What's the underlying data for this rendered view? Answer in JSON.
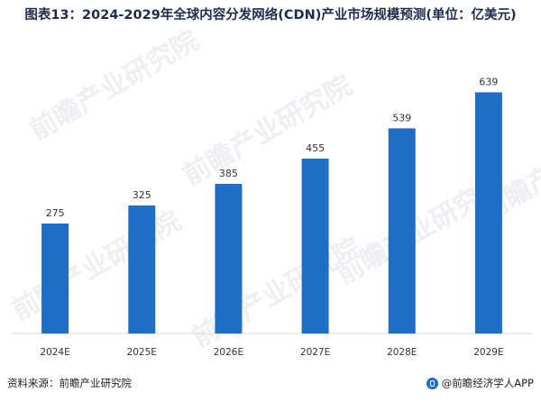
{
  "watermark": "前瞻产业研究院",
  "chart_data": {
    "type": "bar",
    "title": "图表13：2024-2029年全球内容分发网络(CDN)产业市场规模预测(单位：亿美元)",
    "categories": [
      "2024E",
      "2025E",
      "2026E",
      "2027E",
      "2028E",
      "2029E"
    ],
    "values": [
      275,
      325,
      385,
      455,
      539,
      639
    ],
    "xlabel": "",
    "ylabel": "",
    "ylim": [
      0,
      650
    ],
    "grid": false,
    "bar_color": "#1e6ec8"
  },
  "footer": {
    "source": "资料来源：前瞻产业研究院",
    "publisher": "@前瞻经济学人APP"
  }
}
